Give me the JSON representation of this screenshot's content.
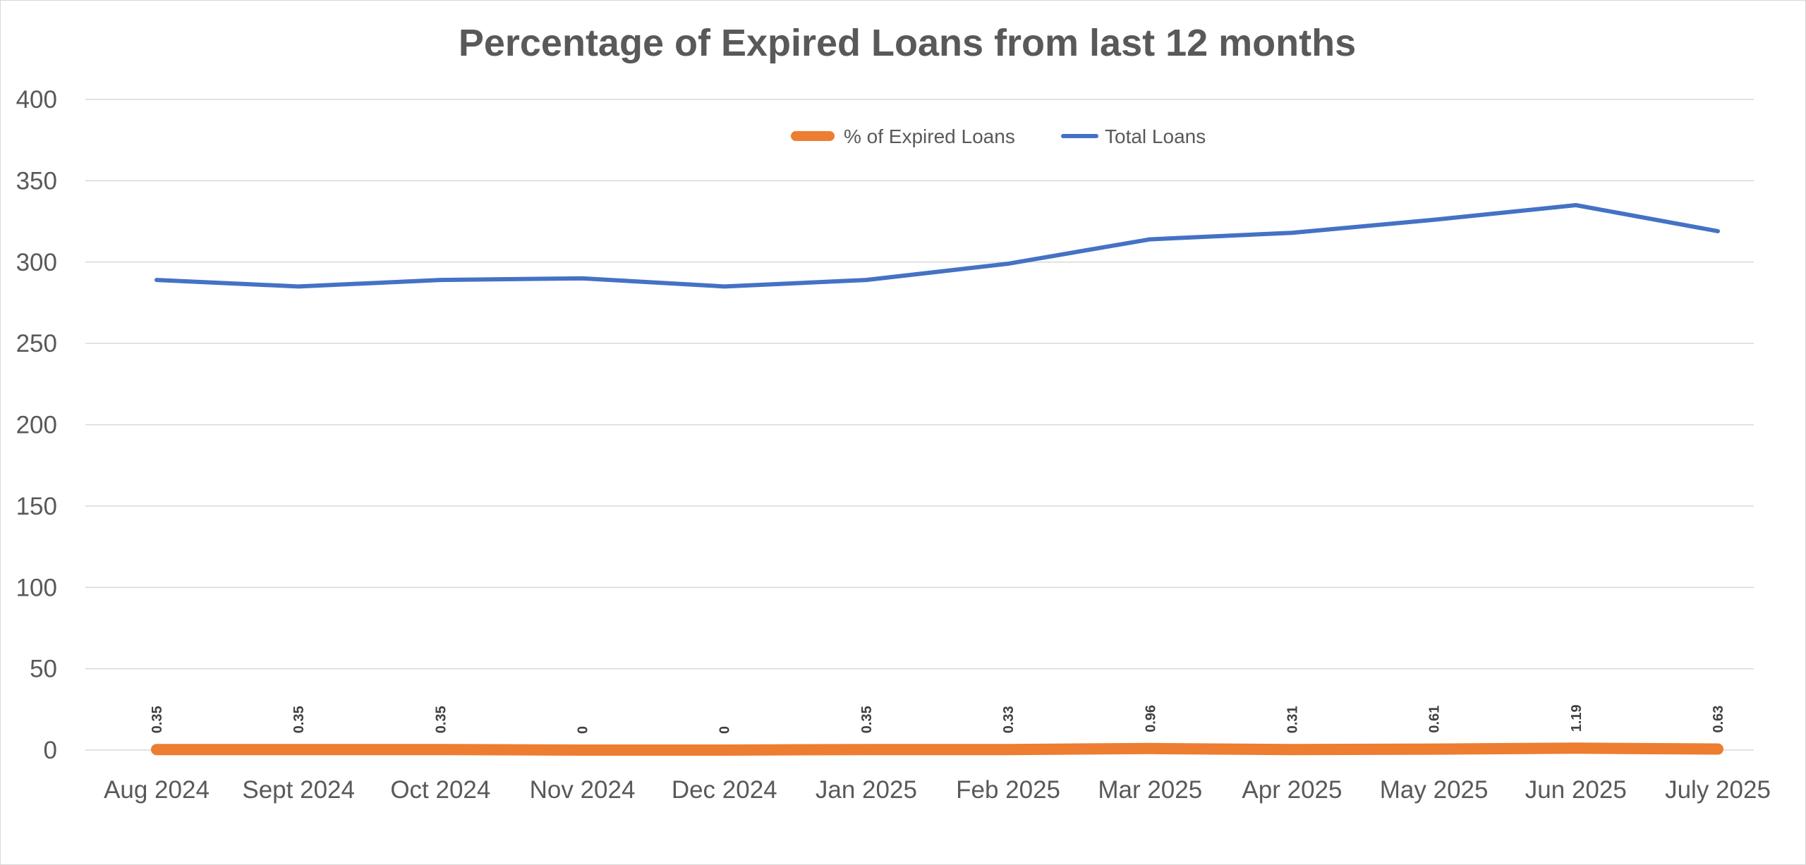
{
  "chart_data": {
    "type": "line",
    "title": "Percentage of Expired Loans from last 12 months",
    "xlabel": "",
    "ylabel": "",
    "ylim": [
      0,
      400
    ],
    "y_ticks": [
      "0",
      "50",
      "100",
      "150",
      "200",
      "250",
      "300",
      "350",
      "400"
    ],
    "grid": true,
    "legend_position": "top-center",
    "categories": [
      "Aug 2024",
      "Sept 2024",
      "Oct 2024",
      "Nov 2024",
      "Dec 2024",
      "Jan 2025",
      "Feb 2025",
      "Mar 2025",
      "Apr 2025",
      "May 2025",
      "Jun 2025",
      "July 2025"
    ],
    "series": [
      {
        "name": "% of Expired Loans",
        "color": "#ED7D31",
        "values": [
          0.35,
          0.35,
          0.35,
          0,
          0,
          0.35,
          0.33,
          0.96,
          0.31,
          0.61,
          1.19,
          0.63
        ],
        "data_labels": [
          "0.35",
          "0.35",
          "0.35",
          "0",
          "0",
          "0.35",
          "0.33",
          "0.96",
          "0.31",
          "0.61",
          "1.19",
          "0.63"
        ]
      },
      {
        "name": "Total Loans",
        "color": "#4472C4",
        "values": [
          289,
          285,
          289,
          290,
          285,
          289,
          299,
          314,
          318,
          326,
          335,
          319
        ]
      }
    ]
  }
}
